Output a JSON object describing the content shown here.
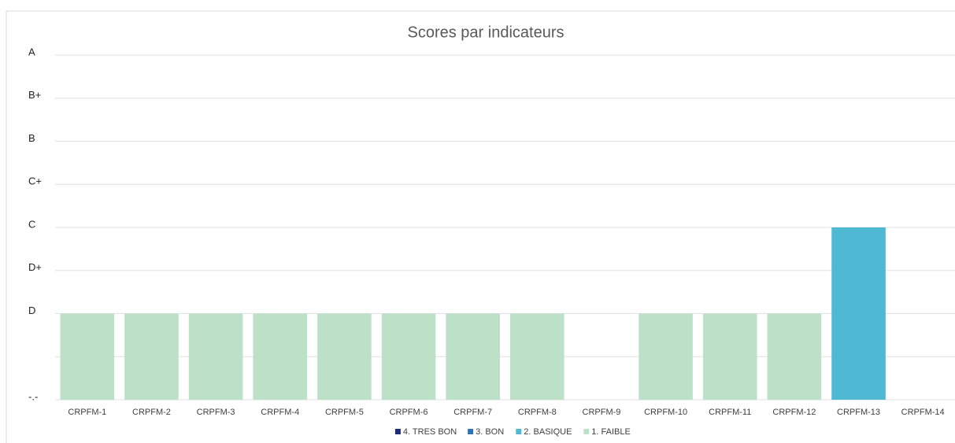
{
  "chart_data": {
    "type": "stacked_bar",
    "title": "Scores par indicateurs",
    "categories": [
      "CRPFM-1",
      "CRPFM-2",
      "CRPFM-3",
      "CRPFM-4",
      "CRPFM-5",
      "CRPFM-6",
      "CRPFM-7",
      "CRPFM-8",
      "CRPFM-9",
      "CRPFM-10",
      "CRPFM-11",
      "CRPFM-12",
      "CRPFM-13",
      "CRPFM-14"
    ],
    "series": [
      {
        "name": "4. TRES BON",
        "color": "#1f2a78",
        "values": [
          null,
          null,
          null,
          null,
          null,
          null,
          null,
          null,
          null,
          null,
          null,
          null,
          null,
          null
        ]
      },
      {
        "name": "3. BON",
        "color": "#2e75b6",
        "values": [
          null,
          null,
          null,
          null,
          null,
          null,
          null,
          null,
          null,
          null,
          null,
          null,
          null,
          null
        ]
      },
      {
        "name": "2. BASIQUE",
        "color": "#4fb9d3",
        "values": [
          null,
          null,
          null,
          null,
          null,
          null,
          null,
          null,
          null,
          null,
          null,
          null,
          4,
          null
        ]
      },
      {
        "name": "1. FAIBLE",
        "color": "#bde0c9",
        "values": [
          2,
          2,
          2,
          2,
          2,
          2,
          2,
          2,
          null,
          2,
          2,
          2,
          null,
          null
        ]
      }
    ],
    "stack_order": [
      3,
      2,
      1,
      0
    ],
    "ylim": [
      0,
      8
    ],
    "yticks": [
      {
        "value": 0,
        "label": "-.-"
      },
      {
        "value": 1,
        "label": null
      },
      {
        "value": 2,
        "label": "D"
      },
      {
        "value": 3,
        "label": "D+"
      },
      {
        "value": 4,
        "label": "C"
      },
      {
        "value": 5,
        "label": "C+"
      },
      {
        "value": 6,
        "label": "B"
      },
      {
        "value": 7,
        "label": "B+"
      },
      {
        "value": 8,
        "label": "A"
      }
    ],
    "grid": true,
    "legend": "bottom"
  }
}
